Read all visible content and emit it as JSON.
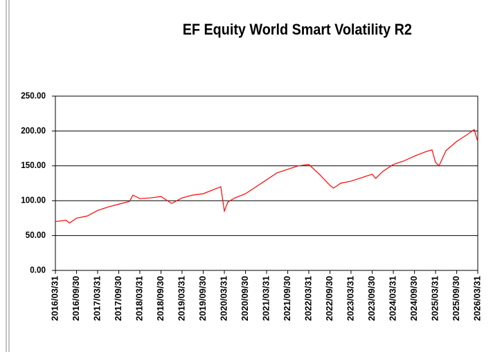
{
  "chart_data": {
    "type": "line",
    "title": "EF  Equity World Smart Volatility  R2",
    "x": [
      "2016/03/31",
      "2016/06/30",
      "2016/07/31",
      "2016/09/30",
      "2016/12/31",
      "2017/03/31",
      "2017/06/30",
      "2017/09/30",
      "2017/12/31",
      "2018/01/31",
      "2018/03/31",
      "2018/06/30",
      "2018/09/30",
      "2018/12/31",
      "2019/03/31",
      "2019/06/30",
      "2019/09/30",
      "2019/12/31",
      "2020/02/29",
      "2020/03/31",
      "2020/04/30",
      "2020/06/30",
      "2020/09/30",
      "2020/12/31",
      "2021/03/31",
      "2021/06/30",
      "2021/09/30",
      "2021/12/31",
      "2022/03/31",
      "2022/06/30",
      "2022/09/30",
      "2022/10/31",
      "2022/12/31",
      "2023/03/31",
      "2023/06/30",
      "2023/09/30",
      "2023/10/31",
      "2023/12/31",
      "2024/03/31",
      "2024/06/30",
      "2024/09/30",
      "2024/12/31",
      "2025/02/28",
      "2025/03/31",
      "2025/04/30",
      "2025/06/30",
      "2025/09/30",
      "2025/12/31",
      "2026/02/28",
      "2026/03/31"
    ],
    "series": [
      {
        "name": "EF Equity World Smart Volatility R2",
        "color": "#ff0000",
        "values": [
          70,
          72,
          68,
          75,
          78,
          86,
          91,
          95,
          99,
          108,
          103,
          104,
          106,
          96,
          104,
          108,
          110,
          116,
          120,
          85,
          98,
          104,
          110,
          120,
          130,
          140,
          145,
          150,
          152,
          138,
          122,
          118,
          125,
          128,
          133,
          138,
          132,
          142,
          152,
          157,
          164,
          170,
          173,
          155,
          150,
          172,
          185,
          195,
          202,
          185
        ]
      }
    ],
    "xlim": [
      "2016/03/31",
      "2026/03/31"
    ],
    "xticks": [
      "2016/03/31",
      "2016/09/30",
      "2017/03/31",
      "2017/09/30",
      "2018/03/31",
      "2018/09/30",
      "2019/03/31",
      "2019/09/30",
      "2020/03/31",
      "2020/09/30",
      "2021/03/31",
      "2021/09/30",
      "2022/03/31",
      "2022/09/30",
      "2023/03/31",
      "2023/09/30",
      "2024/03/31",
      "2024/09/30",
      "2025/03/31",
      "2025/09/30",
      "2026/03/31"
    ],
    "ylim": [
      0,
      250
    ],
    "yticks": [
      {
        "value": 0,
        "label": "0.00"
      },
      {
        "value": 50,
        "label": "50.00"
      },
      {
        "value": 100,
        "label": "100.00"
      },
      {
        "value": 150,
        "label": "150.00"
      },
      {
        "value": 200,
        "label": "200.00"
      },
      {
        "value": 250,
        "label": "250.00"
      }
    ],
    "grid": true
  }
}
